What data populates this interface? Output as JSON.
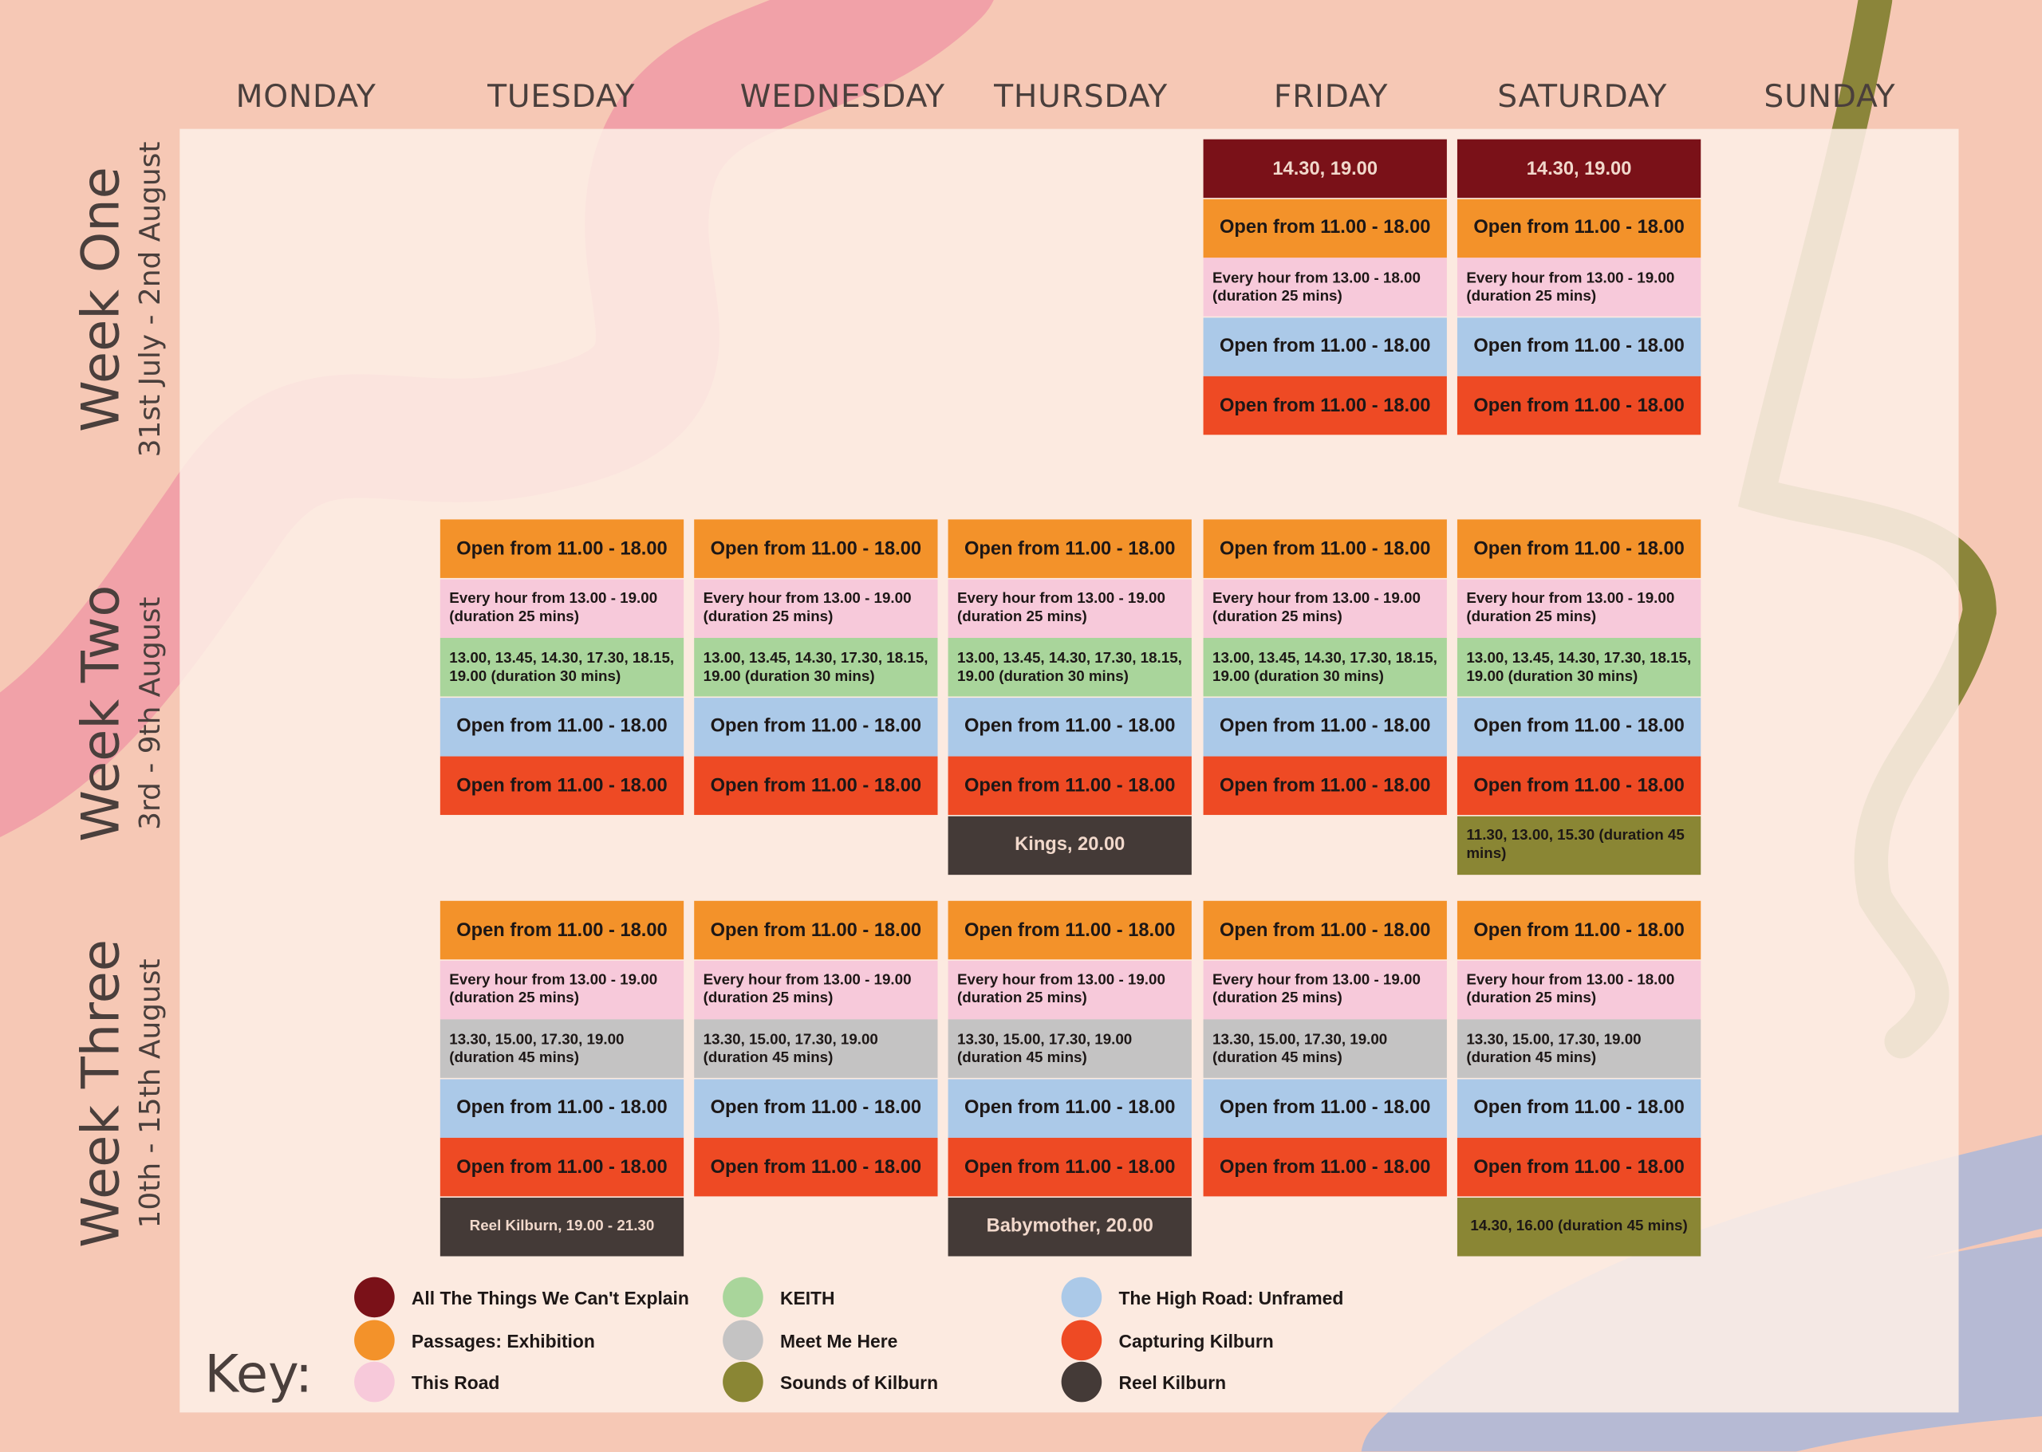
{
  "days": [
    "MONDAY",
    "TUESDAY",
    "WEDNESDAY",
    "THURSDAY",
    "FRIDAY",
    "SATURDAY",
    "SUNDAY"
  ],
  "weeks": [
    {
      "title": "Week One",
      "dates": "31st July - 2nd August",
      "columns": [
        [],
        [],
        [],
        [],
        [
          {
            "text": "14.30, 19.00",
            "color": "#7a1118"
          },
          {
            "text": "Open from 11.00 - 18.00",
            "color": "#f3922a"
          },
          {
            "text": "Every hour from 13.00 - 18.00 (duration 25 mins)",
            "color": "#f7c9da"
          },
          {
            "text": "Open from 11.00 - 18.00",
            "color": "#abc9e8"
          },
          {
            "text": "Open from 11.00 - 18.00",
            "color": "#ee4a24"
          }
        ],
        [
          {
            "text": "14.30, 19.00",
            "color": "#7a1118"
          },
          {
            "text": "Open from 11.00 - 18.00",
            "color": "#f3922a"
          },
          {
            "text": "Every hour from 13.00 - 19.00 (duration 25 mins)",
            "color": "#f7c9da"
          },
          {
            "text": "Open from 11.00 - 18.00",
            "color": "#abc9e8"
          },
          {
            "text": "Open from 11.00 - 18.00",
            "color": "#ee4a24"
          }
        ],
        []
      ]
    },
    {
      "title": "Week Two",
      "dates": "3rd - 9th August",
      "columns": [
        [],
        [
          {
            "text": "Open from 11.00 - 18.00",
            "color": "#f3922a"
          },
          {
            "text": "Every hour from 13.00 - 19.00 (duration 25 mins)",
            "color": "#f7c9da"
          },
          {
            "text": "13.00, 13.45, 14.30, 17.30, 18.15, 19.00 (duration 30 mins)",
            "color": "#a9d59b"
          },
          {
            "text": "Open from 11.00 - 18.00",
            "color": "#abc9e8"
          },
          {
            "text": "Open from 11.00 - 18.00",
            "color": "#ee4a24"
          }
        ],
        [
          {
            "text": "Open from 11.00 - 18.00",
            "color": "#f3922a"
          },
          {
            "text": "Every hour from 13.00 - 19.00 (duration 25 mins)",
            "color": "#f7c9da"
          },
          {
            "text": "13.00, 13.45, 14.30, 17.30, 18.15, 19.00 (duration 30 mins)",
            "color": "#a9d59b"
          },
          {
            "text": "Open from 11.00 - 18.00",
            "color": "#abc9e8"
          },
          {
            "text": "Open from 11.00 - 18.00",
            "color": "#ee4a24"
          }
        ],
        [
          {
            "text": "Open from 11.00 - 18.00",
            "color": "#f3922a"
          },
          {
            "text": "Every hour from 13.00 - 19.00 (duration 25 mins)",
            "color": "#f7c9da"
          },
          {
            "text": "13.00, 13.45, 14.30, 17.30, 18.15, 19.00 (duration 30 mins)",
            "color": "#a9d59b"
          },
          {
            "text": "Open from 11.00 - 18.00",
            "color": "#abc9e8"
          },
          {
            "text": "Open from 11.00 - 18.00",
            "color": "#ee4a24"
          },
          {
            "text": "Kings, 20.00",
            "color": "#443a37"
          }
        ],
        [
          {
            "text": "Open from 11.00 - 18.00",
            "color": "#f3922a"
          },
          {
            "text": "Every hour from 13.00 - 19.00 (duration 25 mins)",
            "color": "#f7c9da"
          },
          {
            "text": "13.00, 13.45, 14.30, 17.30, 18.15, 19.00 (duration 30 mins)",
            "color": "#a9d59b"
          },
          {
            "text": "Open from 11.00 - 18.00",
            "color": "#abc9e8"
          },
          {
            "text": "Open from 11.00 - 18.00",
            "color": "#ee4a24"
          }
        ],
        [
          {
            "text": "Open from 11.00 - 18.00",
            "color": "#f3922a"
          },
          {
            "text": "Every hour from 13.00 - 19.00 (duration 25 mins)",
            "color": "#f7c9da"
          },
          {
            "text": "13.00, 13.45, 14.30, 17.30, 18.15, 19.00 (duration 30 mins)",
            "color": "#a9d59b"
          },
          {
            "text": "Open from 11.00 - 18.00",
            "color": "#abc9e8"
          },
          {
            "text": "Open from 11.00 - 18.00",
            "color": "#ee4a24"
          },
          {
            "text": "11.30, 13.00, 15.30 (duration 45 mins)",
            "color": "#8a8634"
          }
        ],
        []
      ]
    },
    {
      "title": "Week Three",
      "dates": "10th - 15th August",
      "columns": [
        [],
        [
          {
            "text": "Open from 11.00 - 18.00",
            "color": "#f3922a"
          },
          {
            "text": "Every hour from 13.00 - 19.00 (duration 25 mins)",
            "color": "#f7c9da"
          },
          {
            "text": "13.30, 15.00, 17.30, 19.00 (duration 45 mins)",
            "color": "#c4c3c3"
          },
          {
            "text": "Open from 11.00 - 18.00",
            "color": "#abc9e8"
          },
          {
            "text": "Open from 11.00 - 18.00",
            "color": "#ee4a24"
          },
          {
            "text": "Reel Kilburn, 19.00 - 21.30",
            "color": "#443a37"
          }
        ],
        [
          {
            "text": "Open from 11.00 - 18.00",
            "color": "#f3922a"
          },
          {
            "text": "Every hour from 13.00 - 19.00 (duration 25 mins)",
            "color": "#f7c9da"
          },
          {
            "text": "13.30, 15.00, 17.30, 19.00 (duration 45 mins)",
            "color": "#c4c3c3"
          },
          {
            "text": "Open from 11.00 - 18.00",
            "color": "#abc9e8"
          },
          {
            "text": "Open from 11.00 - 18.00",
            "color": "#ee4a24"
          }
        ],
        [
          {
            "text": "Open from 11.00 - 18.00",
            "color": "#f3922a"
          },
          {
            "text": "Every hour from 13.00 - 19.00 (duration 25 mins)",
            "color": "#f7c9da"
          },
          {
            "text": "13.30, 15.00, 17.30, 19.00 (duration 45 mins)",
            "color": "#c4c3c3"
          },
          {
            "text": "Open from 11.00 - 18.00",
            "color": "#abc9e8"
          },
          {
            "text": "Open from 11.00 - 18.00",
            "color": "#ee4a24"
          },
          {
            "text": "Babymother, 20.00",
            "color": "#443a37"
          }
        ],
        [
          {
            "text": "Open from 11.00 - 18.00",
            "color": "#f3922a"
          },
          {
            "text": "Every hour from 13.00 - 19.00 (duration 25 mins)",
            "color": "#f7c9da"
          },
          {
            "text": "13.30, 15.00, 17.30, 19.00 (duration 45 mins)",
            "color": "#c4c3c3"
          },
          {
            "text": "Open from 11.00 - 18.00",
            "color": "#abc9e8"
          },
          {
            "text": "Open from 11.00 - 18.00",
            "color": "#ee4a24"
          }
        ],
        [
          {
            "text": "Open from 11.00 - 18.00",
            "color": "#f3922a"
          },
          {
            "text": "Every hour from 13.00 - 18.00 (duration 25 mins)",
            "color": "#f7c9da"
          },
          {
            "text": "13.30, 15.00, 17.30, 19.00 (duration 45 mins)",
            "color": "#c4c3c3"
          },
          {
            "text": "Open from 11.00 - 18.00",
            "color": "#abc9e8"
          },
          {
            "text": "Open from 11.00 - 18.00",
            "color": "#ee4a24"
          },
          {
            "text": "14.30, 16.00 (duration 45 mins)",
            "color": "#8a8634"
          }
        ],
        []
      ]
    }
  ],
  "key": {
    "title": "Key:",
    "items": [
      {
        "label": "All The Things We Can't Explain",
        "color": "#7a1118"
      },
      {
        "label": "Passages: Exhibition",
        "color": "#f3922a"
      },
      {
        "label": "This Road",
        "color": "#f7c9da"
      },
      {
        "label": "KEITH",
        "color": "#a9d59b"
      },
      {
        "label": "Meet Me Here",
        "color": "#c4c3c3"
      },
      {
        "label": "Sounds of Kilburn",
        "color": "#8a8634"
      },
      {
        "label": "The High Road: Unframed",
        "color": "#abc9e8"
      },
      {
        "label": "Capturing Kilburn",
        "color": "#ee4a24"
      },
      {
        "label": "Reel Kilburn",
        "color": "#443a37"
      }
    ]
  }
}
